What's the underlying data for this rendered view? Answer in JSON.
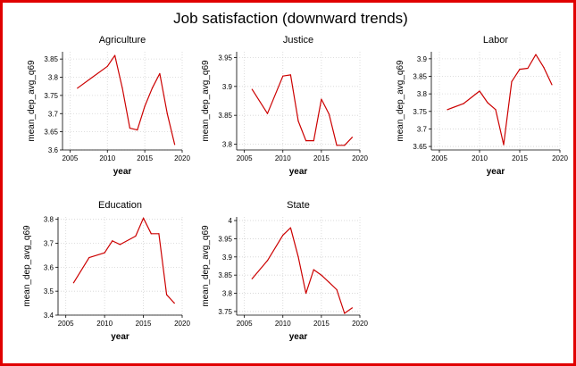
{
  "figure": {
    "title": "Job satisfaction (downward trends)",
    "frame_color": "#e00000",
    "line_color": "#cc0000",
    "grid_color": "#d4d4d4"
  },
  "chart_data": [
    {
      "type": "line",
      "title": "Agriculture",
      "xlabel": "year",
      "ylabel": "mean_dep_avg_q69",
      "xlim": [
        2004,
        2020
      ],
      "ylim": [
        3.6,
        3.87
      ],
      "xticks": [
        2005,
        2010,
        2015,
        2020
      ],
      "yticks": [
        3.6,
        3.65,
        3.7,
        3.75,
        3.8,
        3.85
      ],
      "x": [
        2006,
        2008,
        2010,
        2011,
        2012,
        2013,
        2014,
        2015,
        2016,
        2017,
        2018,
        2019
      ],
      "y": [
        3.77,
        3.8,
        3.83,
        3.86,
        3.77,
        3.66,
        3.655,
        3.72,
        3.77,
        3.81,
        3.7,
        3.615
      ]
    },
    {
      "type": "line",
      "title": "Justice",
      "xlabel": "year",
      "ylabel": "mean_dep_avg_q69",
      "xlim": [
        2004,
        2020
      ],
      "ylim": [
        3.79,
        3.96
      ],
      "xticks": [
        2005,
        2010,
        2015,
        2020
      ],
      "yticks": [
        3.8,
        3.85,
        3.9,
        3.95
      ],
      "x": [
        2006,
        2008,
        2010,
        2011,
        2012,
        2013,
        2014,
        2015,
        2016,
        2017,
        2018,
        2019
      ],
      "y": [
        3.895,
        3.853,
        3.918,
        3.92,
        3.84,
        3.806,
        3.806,
        3.878,
        3.852,
        3.798,
        3.798,
        3.812
      ]
    },
    {
      "type": "line",
      "title": "Labor",
      "xlabel": "year",
      "ylabel": "mean_dep_avg_q69",
      "xlim": [
        2004,
        2020
      ],
      "ylim": [
        3.64,
        3.92
      ],
      "xticks": [
        2005,
        2010,
        2015,
        2020
      ],
      "yticks": [
        3.65,
        3.7,
        3.75,
        3.8,
        3.85,
        3.9
      ],
      "x": [
        2006,
        2008,
        2010,
        2011,
        2012,
        2013,
        2014,
        2015,
        2016,
        2017,
        2018,
        2019
      ],
      "y": [
        3.755,
        3.772,
        3.808,
        3.775,
        3.755,
        3.655,
        3.835,
        3.87,
        3.873,
        3.912,
        3.875,
        3.826
      ]
    },
    {
      "type": "line",
      "title": "Education",
      "xlabel": "year",
      "ylabel": "mean_dep_avg_q69",
      "xlim": [
        2004,
        2020
      ],
      "ylim": [
        3.4,
        3.81
      ],
      "xticks": [
        2005,
        2010,
        2015,
        2020
      ],
      "yticks": [
        3.4,
        3.5,
        3.6,
        3.7,
        3.8
      ],
      "x": [
        2006,
        2008,
        2010,
        2011,
        2012,
        2014,
        2015,
        2016,
        2017,
        2018,
        2019
      ],
      "y": [
        3.535,
        3.64,
        3.66,
        3.71,
        3.695,
        3.73,
        3.805,
        3.74,
        3.74,
        3.485,
        3.45
      ]
    },
    {
      "type": "line",
      "title": "State",
      "xlabel": "year",
      "ylabel": "mean_dep_avg_q69",
      "xlim": [
        2004,
        2020
      ],
      "ylim": [
        3.74,
        4.01
      ],
      "xticks": [
        2005,
        2010,
        2015,
        2020
      ],
      "yticks": [
        3.75,
        3.8,
        3.85,
        3.9,
        3.95,
        4
      ],
      "x": [
        2006,
        2008,
        2010,
        2011,
        2012,
        2013,
        2014,
        2015,
        2016,
        2017,
        2018,
        2019
      ],
      "y": [
        3.84,
        3.89,
        3.96,
        3.98,
        3.9,
        3.8,
        3.865,
        3.85,
        3.83,
        3.81,
        3.745,
        3.76
      ]
    }
  ]
}
